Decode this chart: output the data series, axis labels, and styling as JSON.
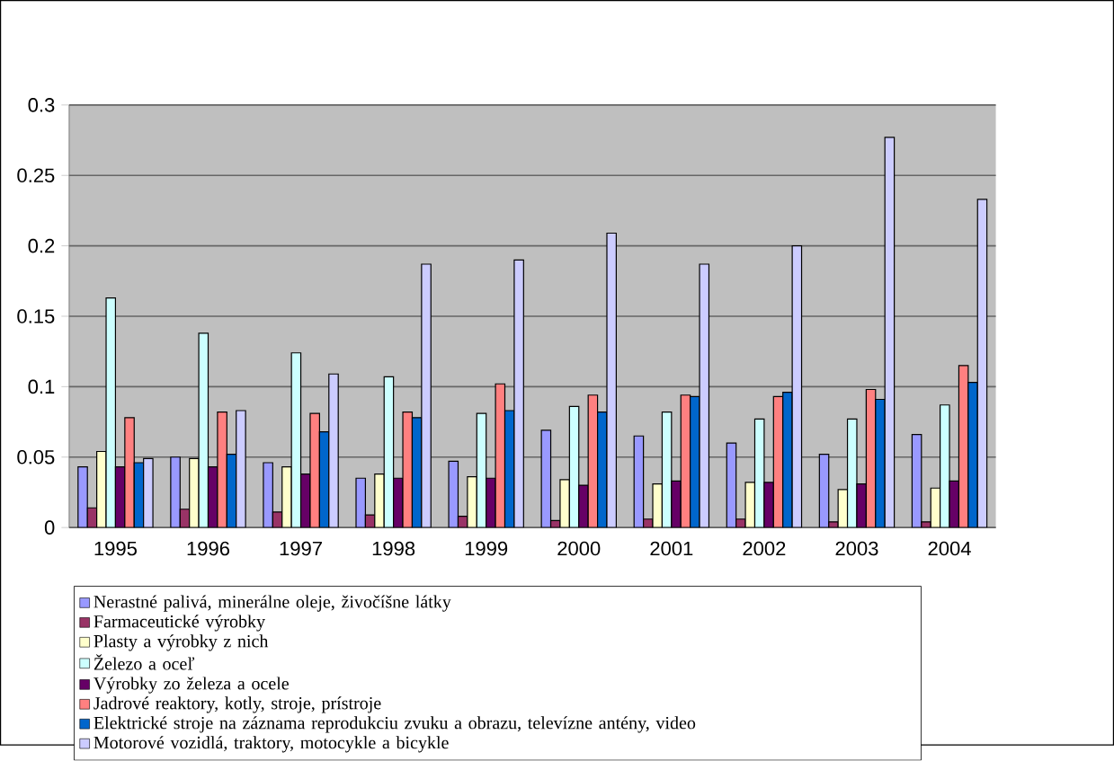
{
  "chart_data": {
    "type": "bar",
    "categories": [
      "1995",
      "1996",
      "1997",
      "1998",
      "1999",
      "2000",
      "2001",
      "2002",
      "2003",
      "2004"
    ],
    "series": [
      {
        "name": "Nerastné palivá, minerálne oleje, živočíšne látky",
        "color": "#9999ff",
        "values": [
          0.043,
          0.05,
          0.046,
          0.035,
          0.047,
          0.069,
          0.065,
          0.06,
          0.052,
          0.066
        ]
      },
      {
        "name": "Farmaceutické výrobky",
        "color": "#993366",
        "values": [
          0.014,
          0.013,
          0.011,
          0.009,
          0.008,
          0.005,
          0.006,
          0.006,
          0.004,
          0.004
        ]
      },
      {
        "name": "Plasty a výrobky z nich",
        "color": "#ffffcc",
        "values": [
          0.054,
          0.049,
          0.043,
          0.038,
          0.036,
          0.034,
          0.031,
          0.032,
          0.027,
          0.028
        ]
      },
      {
        "name": "Železo a oceľ",
        "color": "#ccffff",
        "values": [
          0.163,
          0.138,
          0.124,
          0.107,
          0.081,
          0.086,
          0.082,
          0.077,
          0.077,
          0.087
        ]
      },
      {
        "name": "Výrobky zo železa a ocele",
        "color": "#660066",
        "values": [
          0.043,
          0.043,
          0.038,
          0.035,
          0.035,
          0.03,
          0.033,
          0.032,
          0.031,
          0.033
        ]
      },
      {
        "name": "Jadrové reaktory, kotly, stroje, prístroje",
        "color": "#ff8080",
        "values": [
          0.078,
          0.082,
          0.081,
          0.082,
          0.102,
          0.094,
          0.094,
          0.093,
          0.098,
          0.115
        ]
      },
      {
        "name": "Elektrické stroje na záznama reprodukciu zvuku a obrazu, televízne antény, video",
        "color": "#0066cc",
        "values": [
          0.046,
          0.052,
          0.068,
          0.078,
          0.083,
          0.082,
          0.093,
          0.096,
          0.091,
          0.103
        ]
      },
      {
        "name": "Motorové vozidlá, traktory, motocykle a bicykle",
        "color": "#ccccff",
        "values": [
          0.049,
          0.083,
          0.109,
          0.187,
          0.19,
          0.209,
          0.187,
          0.2,
          0.277,
          0.233
        ]
      }
    ],
    "ylim": [
      0,
      0.3
    ],
    "yticks": [
      0,
      0.05,
      0.1,
      0.15,
      0.2,
      0.25,
      0.3
    ],
    "grid": "y",
    "legend": "bottom"
  }
}
